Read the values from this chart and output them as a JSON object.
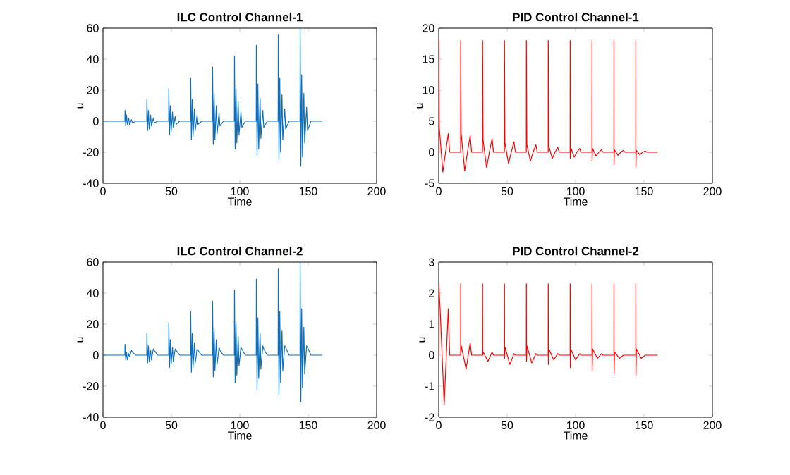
{
  "chart_data": [
    {
      "type": "line",
      "title": "ILC Control Channel-1",
      "xlabel": "Time",
      "ylabel": "u",
      "color": "#0b6fc0",
      "xlim": [
        0,
        200
      ],
      "ylim": [
        -40,
        60
      ],
      "xticks": [
        0,
        50,
        100,
        150,
        200
      ],
      "yticks": [
        -40,
        -20,
        0,
        20,
        40,
        60
      ],
      "x": [
        0,
        16,
        16.1,
        16.6,
        17.2,
        17.8,
        18.8,
        19.4,
        20.8,
        21.5,
        24,
        32,
        32.1,
        32.6,
        33.2,
        33.8,
        34.8,
        35.4,
        36.8,
        37.5,
        40,
        48,
        48.1,
        48.6,
        49.2,
        49.8,
        50.8,
        51.4,
        52.8,
        53.5,
        56,
        64,
        64.1,
        64.6,
        65.2,
        65.8,
        66.8,
        67.4,
        68.8,
        69.5,
        72,
        80,
        80.1,
        80.6,
        81.2,
        81.8,
        82.8,
        83.4,
        84.8,
        85.5,
        88,
        96,
        96.1,
        96.6,
        97.2,
        97.8,
        98.8,
        99.4,
        100.8,
        101.5,
        104,
        112,
        112.1,
        112.6,
        113.2,
        113.8,
        114.8,
        115.4,
        116.8,
        117.5,
        120,
        128,
        128.1,
        128.6,
        129.2,
        129.8,
        130.8,
        131.4,
        132.8,
        133.5,
        136,
        144,
        144.1,
        144.6,
        145.2,
        145.8,
        146.8,
        147.4,
        148.8,
        149.5,
        152,
        160
      ],
      "values": [
        0,
        0,
        7,
        -3,
        4,
        -2,
        2,
        -2,
        1,
        -1,
        0,
        0,
        14,
        -6,
        7,
        -5,
        4,
        -3,
        2,
        -1,
        0,
        0,
        21,
        -9,
        10,
        -7,
        6,
        -4,
        3,
        -2,
        0,
        0,
        28,
        -12,
        14,
        -10,
        8,
        -6,
        4,
        -2,
        0,
        0,
        35,
        -15,
        18,
        -12,
        10,
        -8,
        5,
        -3,
        0,
        0,
        42,
        -18,
        21,
        -14,
        13,
        -9,
        6,
        -4,
        0,
        0,
        49,
        -22,
        24,
        -18,
        15,
        -11,
        7,
        -4,
        0,
        0,
        56,
        -25,
        28,
        -20,
        17,
        -12,
        8,
        -5,
        0,
        0,
        60,
        -29,
        30,
        -23,
        18,
        -14,
        9,
        -6,
        0,
        0
      ]
    },
    {
      "type": "line",
      "title": "PID Control Channel-1",
      "xlabel": "Time",
      "ylabel": "u",
      "color": "#ff0000",
      "xlim": [
        0,
        200
      ],
      "ylim": [
        -5,
        20
      ],
      "xticks": [
        0,
        50,
        100,
        150,
        200
      ],
      "yticks": [
        -5,
        0,
        5,
        10,
        15,
        20
      ],
      "x": [
        0,
        0.05,
        0.4,
        3,
        5,
        7,
        8,
        16,
        16.05,
        16.4,
        19,
        21,
        23,
        24,
        32,
        32.05,
        32.4,
        35,
        37,
        39,
        40,
        48,
        48.05,
        48.4,
        51,
        53,
        55,
        56,
        64,
        64.05,
        64.4,
        67,
        69,
        71,
        72,
        80,
        80.05,
        80.4,
        83,
        85,
        87,
        88,
        96,
        96.05,
        96.1,
        96.4,
        99,
        101,
        103,
        104,
        112,
        112.05,
        112.1,
        112.4,
        115,
        117,
        119,
        120,
        128,
        128.05,
        128.1,
        128.4,
        131,
        133,
        135,
        136,
        144,
        144.05,
        144.1,
        144.4,
        147,
        149,
        151,
        152,
        160
      ],
      "values": [
        0,
        18,
        4,
        -3.2,
        0,
        3,
        0,
        0,
        18,
        3,
        -3,
        0,
        2.7,
        0,
        0,
        18,
        2,
        -2.5,
        0,
        2.2,
        0,
        0,
        18,
        1.5,
        -1.8,
        0,
        1.7,
        0,
        0,
        18,
        1.2,
        -1.4,
        0,
        1.2,
        0,
        0,
        18,
        1,
        -1,
        0,
        0.8,
        0,
        0,
        18,
        -1,
        0.8,
        -0.8,
        0,
        0.6,
        0,
        0,
        18,
        -1.3,
        0.6,
        -0.6,
        0,
        0.4,
        0,
        0,
        18,
        -2,
        0.4,
        -0.5,
        0,
        0.3,
        0,
        0,
        18,
        -2.5,
        0.3,
        -0.4,
        0,
        0.2,
        0,
        0
      ]
    },
    {
      "type": "line",
      "title": "ILC Control Channel-2",
      "xlabel": "Time",
      "ylabel": "u",
      "color": "#0b6fc0",
      "xlim": [
        0,
        200
      ],
      "ylim": [
        -40,
        60
      ],
      "xticks": [
        0,
        50,
        100,
        150,
        200
      ],
      "yticks": [
        -40,
        -20,
        0,
        20,
        40,
        60
      ],
      "x": [
        0,
        16,
        16.1,
        16.6,
        17.2,
        17.8,
        18.8,
        19.4,
        20.8,
        21.5,
        24,
        32,
        32.1,
        32.6,
        33.2,
        33.8,
        34.8,
        35.4,
        36.8,
        37.5,
        40,
        48,
        48.1,
        48.6,
        49.2,
        49.8,
        50.8,
        51.4,
        52.8,
        53.5,
        56,
        64,
        64.1,
        64.6,
        65.2,
        65.8,
        66.8,
        67.4,
        68.8,
        69.5,
        72,
        80,
        80.1,
        80.6,
        81.2,
        81.8,
        82.8,
        83.4,
        84.8,
        85.5,
        88,
        96,
        96.1,
        96.6,
        97.2,
        97.8,
        98.8,
        99.4,
        100.8,
        101.5,
        104,
        112,
        112.1,
        112.6,
        113.2,
        113.8,
        114.8,
        115.4,
        116.8,
        117.5,
        120,
        128,
        128.1,
        128.6,
        129.2,
        129.8,
        130.8,
        131.4,
        132.8,
        133.5,
        136,
        144,
        144.1,
        144.6,
        145.2,
        145.8,
        146.8,
        147.4,
        148.8,
        149.5,
        152,
        160
      ],
      "values": [
        0,
        0,
        7,
        -3,
        2,
        -3,
        1,
        -1,
        3,
        2,
        0,
        0,
        14,
        -5,
        6,
        -4,
        3,
        -3,
        4,
        3,
        0,
        0,
        21,
        -8,
        10,
        -6,
        5,
        -4,
        4,
        3,
        0,
        0,
        28,
        -11,
        14,
        -8,
        8,
        -5,
        4,
        3,
        0,
        0,
        35,
        -14,
        17,
        -10,
        10,
        -6,
        5,
        3,
        0,
        0,
        42,
        -18,
        21,
        -13,
        12,
        -7,
        5,
        4,
        0,
        0,
        49,
        -22,
        24,
        -15,
        14,
        -9,
        6,
        4,
        0,
        0,
        56,
        -26,
        28,
        -18,
        16,
        -10,
        6,
        5,
        0,
        0,
        60,
        -30,
        30,
        -21,
        18,
        -12,
        6,
        5,
        0,
        0
      ]
    },
    {
      "type": "line",
      "title": "PID Control Channel-2",
      "xlabel": "Time",
      "ylabel": "u",
      "color": "#ff0000",
      "xlim": [
        0,
        200
      ],
      "ylim": [
        -2,
        3
      ],
      "xticks": [
        0,
        50,
        100,
        150,
        200
      ],
      "yticks": [
        -2,
        -1,
        0,
        1,
        2,
        3
      ],
      "x": [
        0,
        0.05,
        1,
        4,
        7,
        8,
        16,
        16.05,
        16.15,
        16.5,
        20,
        23,
        24,
        32,
        32.05,
        32.15,
        32.5,
        36,
        39,
        40,
        48,
        48.05,
        48.15,
        48.5,
        52,
        55,
        56,
        64,
        64.05,
        64.15,
        64.5,
        68,
        71,
        72,
        80,
        80.05,
        80.15,
        80.5,
        84,
        87,
        88,
        96,
        96.05,
        96.15,
        96.5,
        100,
        103,
        104,
        112,
        112.05,
        112.15,
        112.5,
        116,
        119,
        120,
        128,
        128.05,
        128.15,
        128.5,
        132,
        135,
        136,
        144,
        144.05,
        144.15,
        144.5,
        148,
        151,
        152,
        160
      ],
      "values": [
        0,
        2.3,
        1.5,
        -1.6,
        1.5,
        0,
        0,
        2.3,
        0,
        0.3,
        -0.45,
        0.4,
        0,
        0,
        2.3,
        0,
        0.1,
        -0.2,
        0.1,
        0,
        0,
        2.3,
        -0.1,
        0.25,
        -0.3,
        0.05,
        0,
        0,
        2.3,
        -0.2,
        0.3,
        -0.25,
        0.05,
        0,
        0,
        2.3,
        -0.3,
        0.2,
        -0.15,
        0.05,
        0,
        0,
        2.3,
        -0.4,
        0.2,
        -0.15,
        0.05,
        0,
        0,
        2.3,
        -0.5,
        0.2,
        -0.1,
        0.05,
        0,
        0,
        2.3,
        -0.6,
        0.1,
        -0.1,
        0,
        0,
        0,
        2.3,
        -0.65,
        0.2,
        -0.1,
        0,
        0,
        0
      ]
    }
  ]
}
